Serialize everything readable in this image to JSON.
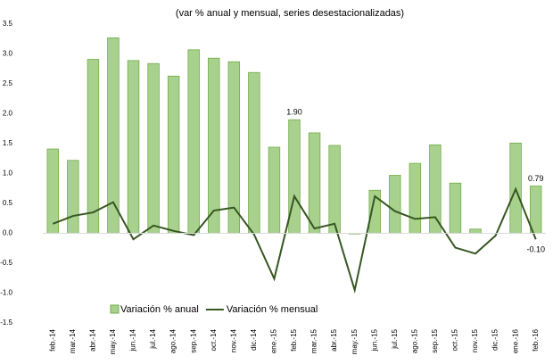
{
  "chart_data": {
    "type": "bar",
    "title": "(var % anual y mensual, series desestacionalizadas)",
    "categories": [
      "feb.-14",
      "mar.-14",
      "abr.-14",
      "may.-14",
      "jun.-14",
      "jul.-14",
      "ago.-14",
      "sep.-14",
      "oct.-14",
      "nov.-14",
      "dic.-14",
      "ene.-15",
      "feb.-15",
      "mar.-15",
      "abr.-15",
      "may.-15",
      "jun.-15",
      "jul.-15",
      "ago.-15",
      "sep.-15",
      "oct.-15",
      "nov.-15",
      "dic.-15",
      "ene.-16",
      "feb.-16"
    ],
    "series": [
      {
        "name": "Variación % anual",
        "type": "bar",
        "color": "#a9d18e",
        "stroke": "#70ad47",
        "values": [
          1.41,
          1.22,
          2.91,
          3.27,
          2.89,
          2.84,
          2.63,
          3.07,
          2.93,
          2.87,
          2.69,
          1.44,
          1.9,
          1.68,
          1.47,
          -0.01,
          0.72,
          0.97,
          1.17,
          1.48,
          0.84,
          0.07,
          0.0,
          1.51,
          0.79
        ],
        "value_labels": [
          null,
          null,
          null,
          null,
          null,
          null,
          null,
          null,
          null,
          null,
          null,
          null,
          "1.90",
          null,
          null,
          null,
          null,
          null,
          null,
          null,
          null,
          null,
          null,
          null,
          "0.79"
        ]
      },
      {
        "name": "Variación % mensual",
        "type": "line",
        "color": "#375623",
        "values": [
          0.16,
          0.29,
          0.35,
          0.52,
          -0.1,
          0.13,
          0.04,
          -0.03,
          0.38,
          0.43,
          -0.02,
          -0.76,
          0.62,
          0.08,
          0.16,
          -0.95,
          0.62,
          0.37,
          0.24,
          0.27,
          -0.24,
          -0.34,
          -0.04,
          0.74,
          -0.1
        ],
        "value_labels": [
          null,
          null,
          null,
          null,
          null,
          null,
          null,
          null,
          null,
          null,
          null,
          null,
          null,
          null,
          null,
          null,
          null,
          null,
          null,
          null,
          null,
          null,
          null,
          null,
          "-0.10"
        ]
      }
    ],
    "ylim": [
      -1.5,
      3.5
    ],
    "yticks": [
      -1.5,
      {
        "value": -1,
        "label": "-1.0"
      },
      -0.5,
      {
        "value": 0,
        "label": "0.0"
      },
      0.5,
      {
        "value": 1,
        "label": "1.0"
      },
      1.5,
      {
        "value": 2,
        "label": "2.0"
      },
      2.5,
      {
        "value": 3,
        "label": "3.0"
      },
      3.5
    ],
    "grid": false
  }
}
